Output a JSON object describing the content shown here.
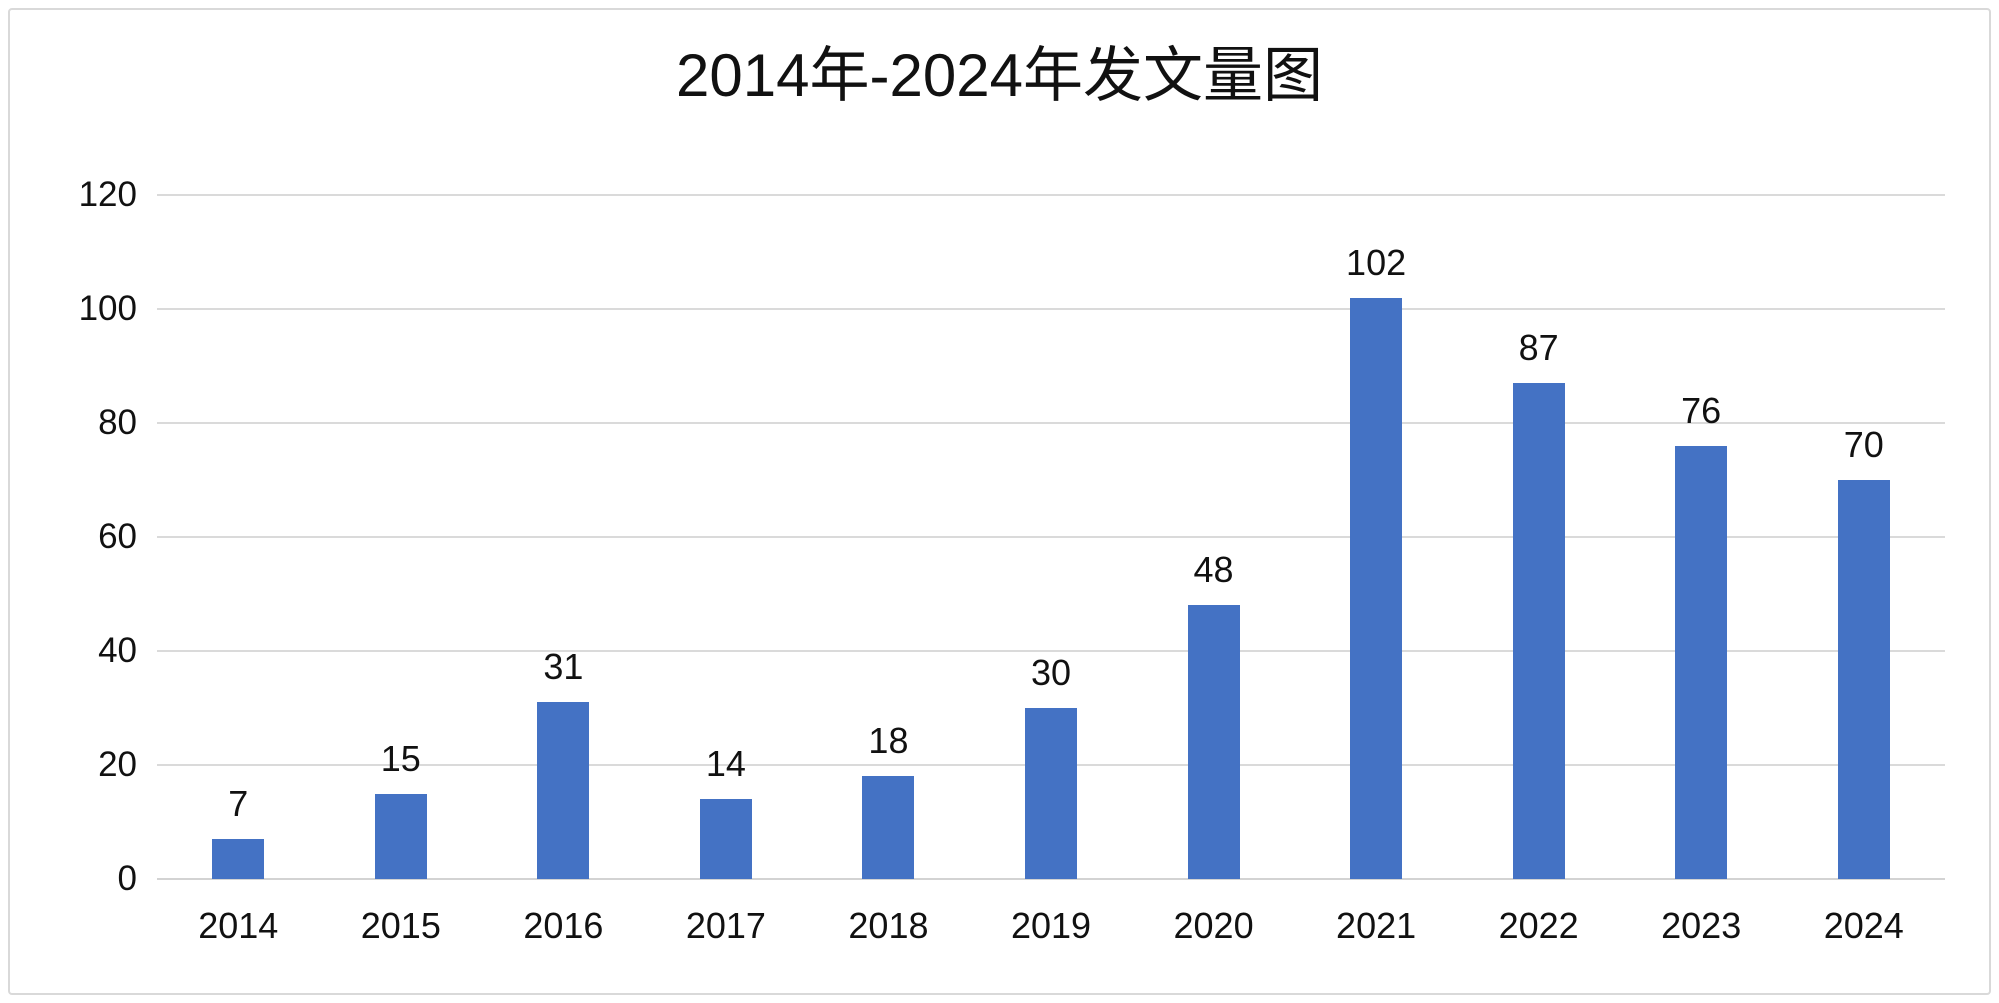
{
  "chart_data": {
    "type": "bar",
    "title": "2014年-2024年发文量图",
    "categories": [
      "2014",
      "2015",
      "2016",
      "2017",
      "2018",
      "2019",
      "2020",
      "2021",
      "2022",
      "2023",
      "2024"
    ],
    "values": [
      7,
      15,
      31,
      14,
      18,
      30,
      48,
      102,
      87,
      76,
      70
    ],
    "xlabel": "",
    "ylabel": "",
    "ylim": [
      0,
      120
    ],
    "ytick_step": 20,
    "yticks": [
      0,
      20,
      40,
      60,
      80,
      100,
      120
    ],
    "grid": true,
    "legend_position": "none",
    "colors": {
      "bar": "#4472C4",
      "gridline": "#DADADA",
      "text": "#111111",
      "background": "#FFFFFF",
      "frame_border": "#D9D9D9"
    }
  }
}
